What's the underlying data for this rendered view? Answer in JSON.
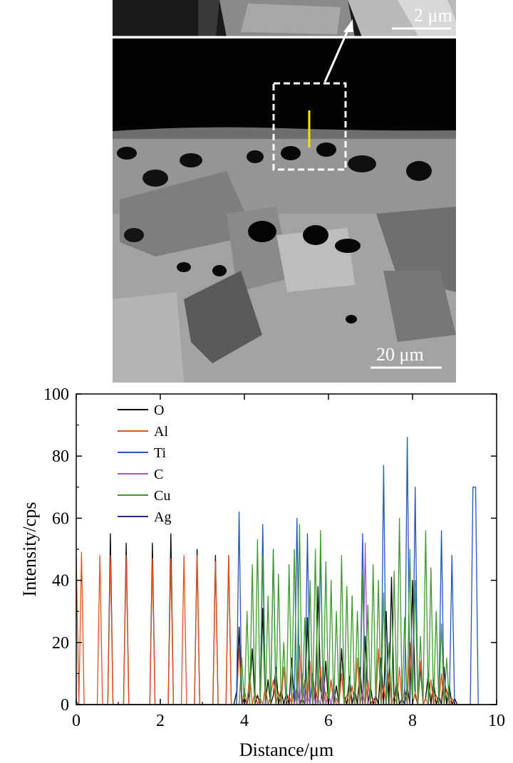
{
  "micrograph": {
    "inset_scale_label": "2 μm",
    "main_scale_label": "20 μm",
    "line_scan_color": "#f5e500",
    "box_color": "#ffffff"
  },
  "chart_data": {
    "type": "line",
    "xlabel": "Distance/μm",
    "ylabel": "Intensity/cps",
    "xlim": [
      0,
      10
    ],
    "ylim": [
      0,
      100
    ],
    "xticks": [
      "0",
      "2",
      "4",
      "6",
      "8",
      "10"
    ],
    "yticks": [
      "0",
      "20",
      "40",
      "60",
      "80",
      "100"
    ],
    "grid": false,
    "legend_position": "top-left",
    "x_step": 0.0625,
    "series": [
      {
        "name": "O",
        "color": "#000000",
        "values": [
          0,
          0,
          0,
          0,
          0,
          0,
          0,
          0,
          0,
          0,
          0,
          0,
          0,
          55,
          0,
          0,
          0,
          0,
          0,
          52,
          0,
          0,
          0,
          0,
          0,
          0,
          0,
          0,
          0,
          52,
          0,
          0,
          0,
          0,
          0,
          0,
          55,
          0,
          0,
          0,
          0,
          0,
          0,
          0,
          0,
          0,
          50,
          0,
          0,
          0,
          0,
          0,
          0,
          48,
          0,
          0,
          0,
          0,
          48,
          0,
          0,
          4,
          25,
          0,
          2,
          0,
          5,
          18,
          0,
          3,
          0,
          31,
          0,
          8,
          0,
          3,
          12,
          0,
          5,
          0,
          4,
          0,
          15,
          0,
          6,
          0,
          2,
          0,
          28,
          0,
          10,
          0,
          38,
          5,
          0,
          14,
          0,
          8,
          0,
          6,
          0,
          18,
          3,
          0,
          9,
          0,
          5,
          0,
          12,
          0,
          22,
          0,
          6,
          0,
          3,
          0,
          15,
          0,
          30,
          0,
          41,
          0,
          8,
          0,
          2,
          0,
          6,
          0,
          40,
          3,
          0,
          12,
          0,
          2,
          10,
          0,
          8,
          0,
          3,
          0,
          12,
          0,
          6,
          0,
          2,
          0,
          0,
          0,
          0,
          0,
          0,
          0,
          0,
          0
        ]
      },
      {
        "name": "Al",
        "color": "#e8501e",
        "values": [
          48,
          0,
          49,
          0,
          0,
          0,
          0,
          0,
          0,
          48,
          0,
          0,
          0,
          48,
          0,
          0,
          0,
          0,
          0,
          48,
          0,
          0,
          0,
          0,
          0,
          0,
          0,
          0,
          0,
          47,
          0,
          0,
          0,
          0,
          0,
          0,
          47,
          0,
          0,
          0,
          0,
          48,
          0,
          0,
          0,
          0,
          48,
          0,
          0,
          0,
          0,
          0,
          0,
          46,
          0,
          0,
          0,
          0,
          48,
          0,
          0,
          0,
          18,
          0,
          5,
          0,
          10,
          0,
          4,
          0,
          2,
          0,
          6,
          0,
          3,
          8,
          0,
          4,
          0,
          12,
          0,
          3,
          0,
          6,
          0,
          19,
          0,
          8,
          0,
          14,
          0,
          6,
          0,
          12,
          0,
          4,
          0,
          8,
          0,
          2,
          0,
          10,
          0,
          3,
          0,
          6,
          0,
          15,
          0,
          4,
          0,
          8,
          0,
          2,
          0,
          18,
          0,
          6,
          0,
          10,
          0,
          3,
          0,
          12,
          0,
          5,
          0,
          20,
          0,
          4,
          0,
          14,
          0,
          2,
          0,
          8,
          0,
          3,
          0,
          10,
          0,
          5,
          0,
          2,
          0,
          0,
          0,
          0,
          0,
          0,
          0,
          0,
          0,
          0
        ]
      },
      {
        "name": "Ti",
        "color": "#1f56c2",
        "values": [
          1,
          0,
          0,
          0,
          0,
          0,
          0,
          0,
          0,
          0,
          0,
          0,
          0,
          0,
          0,
          0,
          0,
          0,
          0,
          0,
          0,
          0,
          0,
          0,
          0,
          0,
          0,
          0,
          0,
          0,
          0,
          0,
          0,
          0,
          0,
          0,
          0,
          0,
          0,
          0,
          0,
          0,
          0,
          0,
          0,
          0,
          0,
          0,
          0,
          0,
          0,
          0,
          0,
          0,
          0,
          0,
          0,
          0,
          0,
          0,
          0,
          0,
          62,
          0,
          0,
          0,
          0,
          0,
          0,
          0,
          0,
          58,
          0,
          0,
          0,
          50,
          0,
          0,
          0,
          0,
          0,
          0,
          0,
          0,
          60,
          0,
          0,
          0,
          55,
          0,
          0,
          0,
          0,
          50,
          0,
          0,
          0,
          0,
          0,
          0,
          0,
          0,
          0,
          0,
          0,
          0,
          0,
          0,
          0,
          55,
          0,
          0,
          0,
          0,
          0,
          0,
          0,
          77,
          0,
          0,
          0,
          0,
          0,
          0,
          0,
          0,
          86,
          0,
          0,
          70,
          0,
          0,
          0,
          0,
          0,
          0,
          0,
          0,
          0,
          56,
          0,
          0,
          0,
          48,
          0,
          0,
          0,
          0,
          0,
          0,
          0,
          70,
          70,
          0,
          0,
          0
        ]
      },
      {
        "name": "C",
        "color": "#a05ac8",
        "values": [
          0,
          0,
          0,
          0,
          0,
          0,
          0,
          0,
          0,
          0,
          0,
          0,
          0,
          0,
          0,
          0,
          0,
          0,
          0,
          0,
          0,
          0,
          0,
          0,
          0,
          0,
          0,
          0,
          0,
          0,
          0,
          0,
          0,
          0,
          0,
          0,
          0,
          0,
          0,
          0,
          0,
          0,
          0,
          0,
          0,
          0,
          0,
          0,
          0,
          0,
          0,
          0,
          0,
          0,
          0,
          0,
          0,
          0,
          0,
          0,
          0,
          0,
          0,
          0,
          0,
          0,
          0,
          0,
          0,
          0,
          0,
          0,
          0,
          0,
          0,
          0,
          0,
          0,
          0,
          0,
          0,
          0,
          0,
          0,
          5,
          0,
          10,
          0,
          3,
          0,
          8,
          0,
          2,
          0,
          12,
          0,
          4,
          0,
          6,
          0,
          0,
          0,
          0,
          0,
          0,
          0,
          0,
          0,
          0,
          0,
          52,
          0,
          0,
          0,
          0,
          0,
          0,
          0,
          0,
          0,
          0,
          0,
          0,
          0,
          0,
          0,
          0,
          0,
          0,
          0,
          0,
          0,
          0,
          0,
          0,
          0,
          0,
          0,
          0,
          0,
          0,
          0,
          0,
          0,
          0,
          0,
          0,
          0,
          0,
          0,
          0,
          0,
          0,
          0,
          0,
          0,
          0,
          0,
          0,
          0,
          0
        ]
      },
      {
        "name": "Cu",
        "color": "#3f9a2e",
        "values": [
          0,
          0,
          0,
          0,
          0,
          0,
          0,
          0,
          0,
          0,
          0,
          0,
          0,
          0,
          0,
          0,
          0,
          0,
          0,
          0,
          0,
          0,
          0,
          0,
          0,
          0,
          0,
          0,
          0,
          0,
          0,
          0,
          0,
          0,
          0,
          0,
          0,
          0,
          0,
          0,
          0,
          0,
          0,
          0,
          0,
          0,
          0,
          0,
          0,
          0,
          0,
          0,
          0,
          0,
          0,
          0,
          0,
          0,
          0,
          0,
          0,
          0,
          0,
          15,
          0,
          30,
          0,
          45,
          0,
          53,
          0,
          48,
          0,
          35,
          0,
          50,
          0,
          42,
          0,
          20,
          0,
          45,
          0,
          50,
          0,
          58,
          0,
          28,
          0,
          40,
          0,
          50,
          0,
          56,
          0,
          46,
          0,
          40,
          0,
          30,
          0,
          48,
          0,
          38,
          0,
          35,
          0,
          30,
          0,
          42,
          0,
          32,
          0,
          45,
          0,
          40,
          0,
          36,
          0,
          20,
          0,
          43,
          0,
          60,
          0,
          28,
          0,
          50,
          0,
          40,
          0,
          22,
          0,
          56,
          0,
          44,
          0,
          30,
          0,
          26,
          0,
          15,
          0,
          0,
          0,
          0,
          0,
          0,
          0,
          0,
          0,
          0,
          0,
          0
        ]
      },
      {
        "name": "Ag",
        "color": "#2b2b80",
        "values": [
          0,
          0,
          0,
          0,
          0,
          0,
          0,
          0,
          0,
          0,
          0,
          0,
          0,
          0,
          0,
          0,
          0,
          0,
          0,
          0,
          0,
          0,
          0,
          0,
          0,
          0,
          0,
          0,
          0,
          0,
          0,
          0,
          0,
          0,
          0,
          0,
          0,
          0,
          0,
          0,
          0,
          0,
          0,
          0,
          0,
          0,
          0,
          0,
          0,
          0,
          0,
          0,
          0,
          0,
          0,
          0,
          0,
          0,
          0,
          0,
          0,
          0,
          0,
          0,
          0,
          0,
          0,
          0,
          0,
          0,
          0,
          0,
          0,
          0,
          0,
          0,
          0,
          0,
          0,
          0,
          0,
          0,
          0,
          0,
          0,
          0,
          0,
          0,
          0,
          0,
          0,
          0,
          0,
          0,
          0,
          0,
          0,
          0,
          0,
          0,
          0,
          0,
          0,
          0,
          0,
          0,
          0,
          0,
          0,
          0,
          0,
          0,
          0,
          0,
          0,
          0,
          0,
          0,
          0,
          0,
          0,
          0,
          0,
          0,
          0,
          0,
          0,
          0,
          0,
          0,
          0,
          0,
          0,
          0,
          0,
          0,
          0,
          0,
          0,
          0,
          0,
          0,
          0,
          0,
          0,
          0,
          0,
          0,
          0,
          0,
          0,
          0,
          0,
          0,
          0,
          0,
          0,
          0,
          0,
          0,
          0
        ]
      }
    ]
  }
}
